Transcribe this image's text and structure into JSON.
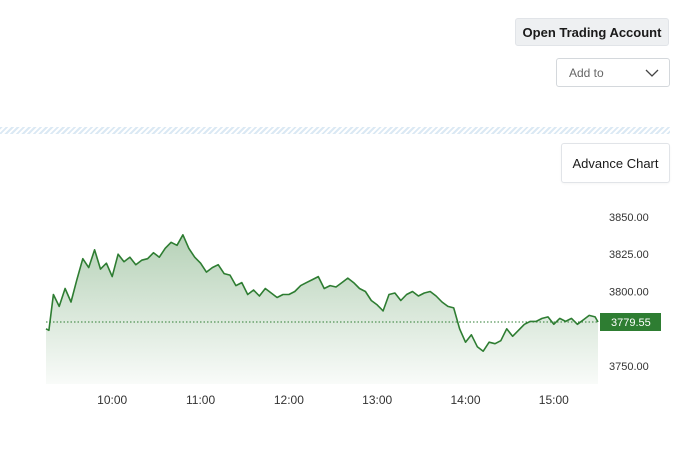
{
  "header": {
    "open_account_label": "Open Trading Account",
    "add_to": {
      "selected": "Add to"
    }
  },
  "advance_chart_label": "Advance Chart",
  "colors": {
    "line": "#2e7d32",
    "badge": "#2e7d32",
    "fill": "#2e7d32"
  },
  "chart_data": {
    "type": "area",
    "x_ticks": [
      "10:00",
      "11:00",
      "12:00",
      "13:00",
      "14:00",
      "15:00"
    ],
    "y_ticks": [
      "3850.00",
      "3825.00",
      "3800.00",
      "3750.00"
    ],
    "ylim": [
      3738,
      3858
    ],
    "xlim": [
      "09:15",
      "15:30"
    ],
    "last_value_label": "3779.55",
    "last_value": 3779.55,
    "x": [
      "09:15",
      "09:17",
      "09:20",
      "09:24",
      "09:28",
      "09:32",
      "09:36",
      "09:40",
      "09:44",
      "09:48",
      "09:52",
      "09:56",
      "10:00",
      "10:04",
      "10:08",
      "10:12",
      "10:16",
      "10:20",
      "10:24",
      "10:28",
      "10:32",
      "10:36",
      "10:40",
      "10:44",
      "10:48",
      "10:52",
      "10:56",
      "11:00",
      "11:04",
      "11:08",
      "11:12",
      "11:16",
      "11:20",
      "11:24",
      "11:28",
      "11:32",
      "11:36",
      "11:40",
      "11:44",
      "11:48",
      "11:52",
      "11:56",
      "12:00",
      "12:04",
      "12:08",
      "12:12",
      "12:16",
      "12:20",
      "12:24",
      "12:28",
      "12:32",
      "12:36",
      "12:40",
      "12:44",
      "12:48",
      "12:52",
      "12:56",
      "13:00",
      "13:04",
      "13:08",
      "13:12",
      "13:16",
      "13:20",
      "13:24",
      "13:28",
      "13:32",
      "13:36",
      "13:40",
      "13:44",
      "13:48",
      "13:52",
      "13:56",
      "14:00",
      "14:04",
      "14:08",
      "14:12",
      "14:16",
      "14:20",
      "14:24",
      "14:28",
      "14:32",
      "14:36",
      "14:40",
      "14:44",
      "14:48",
      "14:52",
      "14:56",
      "15:00",
      "15:04",
      "15:08",
      "15:12",
      "15:16",
      "15:20",
      "15:24",
      "15:28",
      "15:30"
    ],
    "y": [
      3775,
      3774,
      3798,
      3790,
      3802,
      3793,
      3808,
      3822,
      3816,
      3828,
      3815,
      3819,
      3810,
      3825,
      3820,
      3823,
      3818,
      3821,
      3822,
      3826,
      3823,
      3829,
      3833,
      3831,
      3838,
      3829,
      3823,
      3819,
      3813,
      3816,
      3818,
      3812,
      3811,
      3804,
      3806,
      3798,
      3801,
      3797,
      3802,
      3799,
      3796,
      3798,
      3798,
      3800,
      3804,
      3806,
      3808,
      3810,
      3802,
      3804,
      3803,
      3806,
      3809,
      3806,
      3802,
      3800,
      3794,
      3791,
      3787,
      3798,
      3799,
      3794,
      3798,
      3800,
      3797,
      3799,
      3800,
      3797,
      3793,
      3790,
      3789,
      3775,
      3766,
      3771,
      3763,
      3760,
      3766,
      3765,
      3767,
      3775,
      3770,
      3774,
      3778,
      3780,
      3780,
      3782,
      3783,
      3778,
      3782,
      3780,
      3782,
      3778,
      3781,
      3784,
      3783,
      3779.55
    ]
  }
}
